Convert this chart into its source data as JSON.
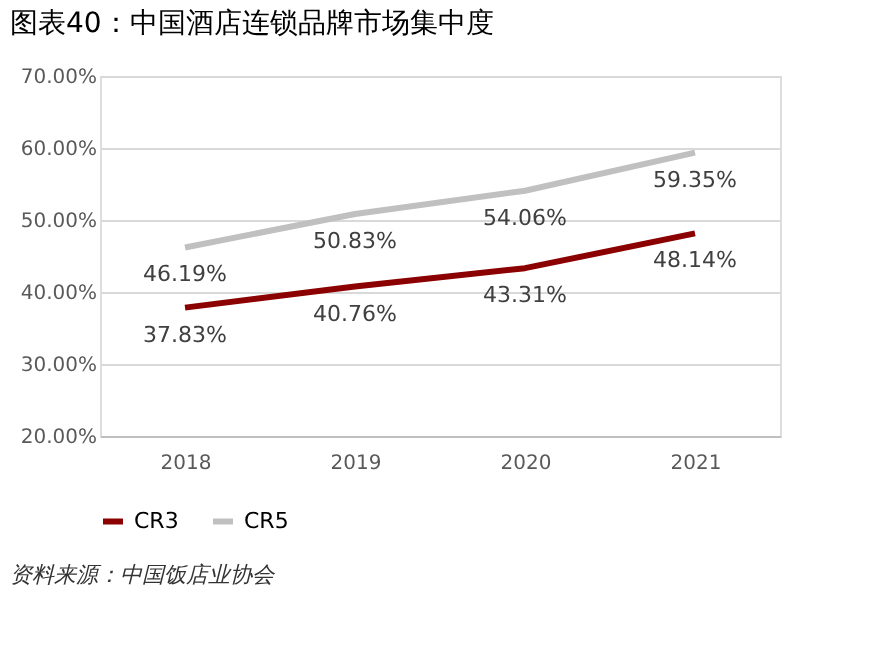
{
  "chart_data": {
    "type": "line",
    "title": "图表40：中国酒店连锁品牌市场集中度",
    "categories": [
      "2018",
      "2019",
      "2020",
      "2021"
    ],
    "series": [
      {
        "name": "CR3",
        "color": "#8b0000",
        "values": [
          37.83,
          40.76,
          43.31,
          48.14
        ],
        "value_labels": [
          "37.83%",
          "40.76%",
          "43.31%",
          "48.14%"
        ]
      },
      {
        "name": "CR5",
        "color": "#c0c0c0",
        "values": [
          46.19,
          50.83,
          54.06,
          59.35
        ],
        "value_labels": [
          "46.19%",
          "50.83%",
          "54.06%",
          "59.35%"
        ]
      }
    ],
    "ylim": [
      20,
      70
    ],
    "yticks": [
      {
        "value": 20,
        "label": "20.00%"
      },
      {
        "value": 30,
        "label": "30.00%"
      },
      {
        "value": 40,
        "label": "40.00%"
      },
      {
        "value": 50,
        "label": "50.00%"
      },
      {
        "value": 60,
        "label": "60.00%"
      },
      {
        "value": 70,
        "label": "70.00%"
      }
    ],
    "grid": "y",
    "legend": "bottom",
    "marker": "none",
    "line_style": "solid",
    "annotations": [
      "资料来源：中国饭店业协会"
    ]
  }
}
